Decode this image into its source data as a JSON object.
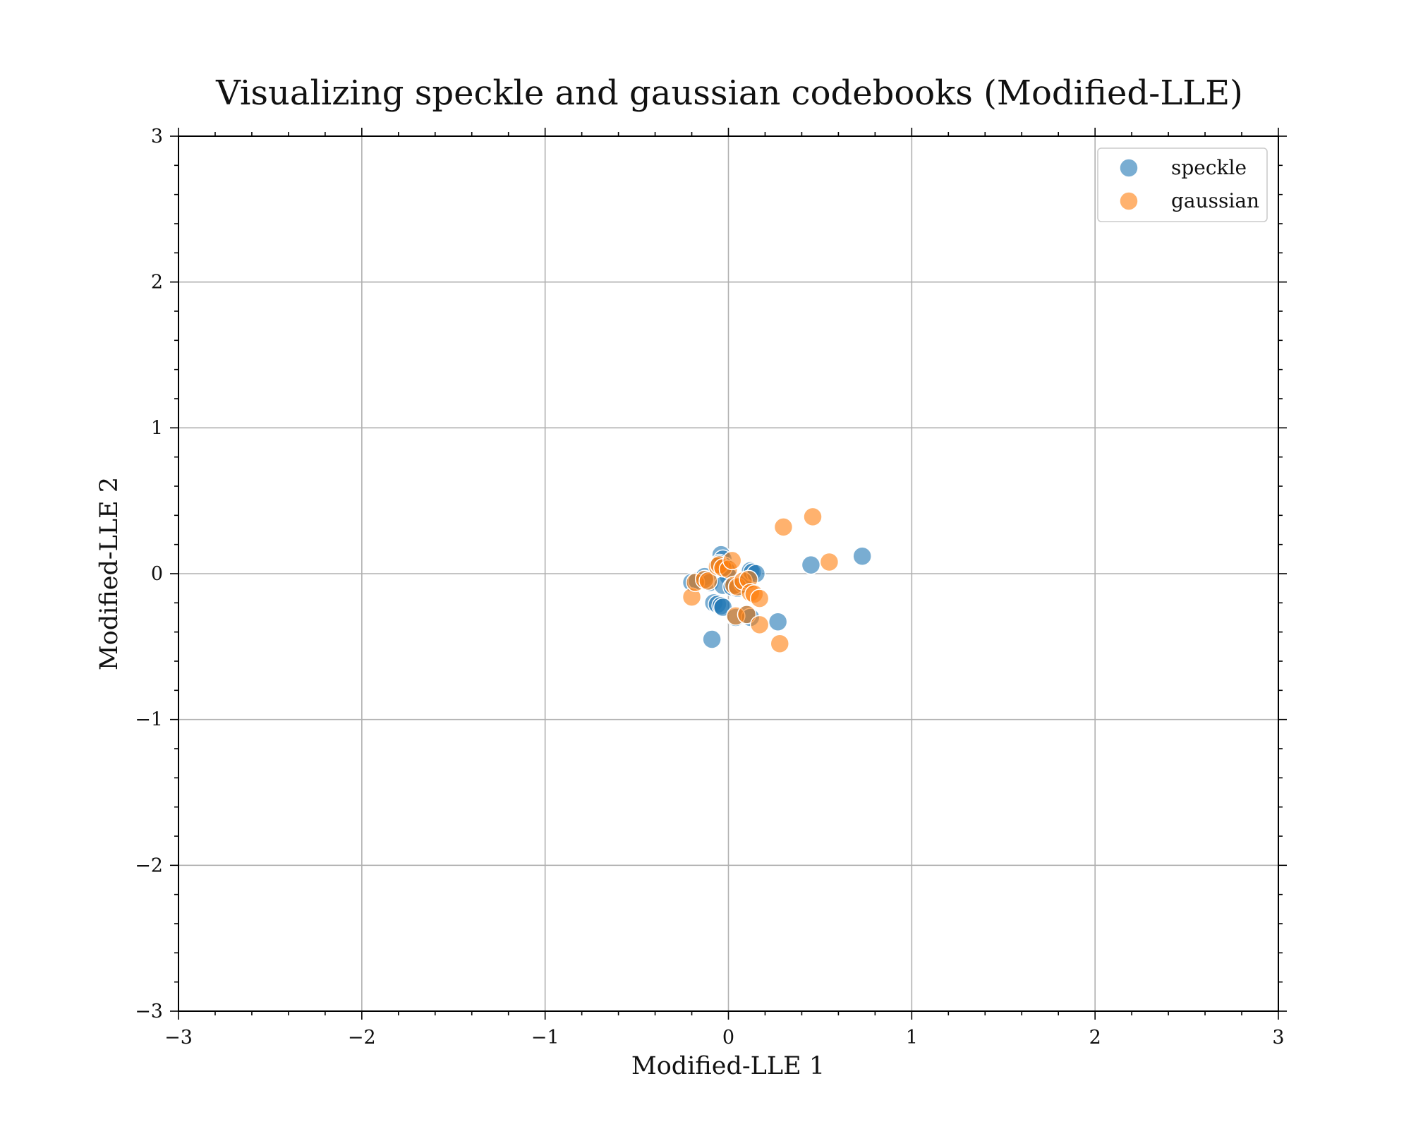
{
  "chart_data": {
    "type": "scatter",
    "title": "Visualizing speckle and gaussian codebooks (Modified-LLE)",
    "xlabel": "Modified-LLE 1",
    "ylabel": "Modified-LLE 2",
    "xlim": [
      -3,
      3
    ],
    "ylim": [
      -3,
      3
    ],
    "xticks": [
      -3,
      -2,
      -1,
      0,
      1,
      2,
      3
    ],
    "yticks": [
      -3,
      -2,
      -1,
      0,
      1,
      2,
      3
    ],
    "xtick_labels": [
      "−3",
      "−2",
      "−1",
      "0",
      "1",
      "2",
      "3"
    ],
    "ytick_labels": [
      "−3",
      "−2",
      "−1",
      "0",
      "1",
      "2",
      "3"
    ],
    "grid": true,
    "legend_position": "top-right",
    "series": [
      {
        "name": "speckle",
        "color": "#1f77b4",
        "points": [
          [
            -0.2,
            -0.06
          ],
          [
            -0.17,
            -0.05
          ],
          [
            -0.13,
            -0.02
          ],
          [
            -0.1,
            -0.06
          ],
          [
            -0.08,
            -0.2
          ],
          [
            -0.06,
            -0.21
          ],
          [
            -0.04,
            -0.22
          ],
          [
            -0.03,
            -0.23
          ],
          [
            -0.09,
            -0.45
          ],
          [
            -0.04,
            0.13
          ],
          [
            -0.03,
            0.1
          ],
          [
            -0.05,
            0.07
          ],
          [
            -0.02,
            0.05
          ],
          [
            -0.01,
            0.02
          ],
          [
            0.0,
            -0.02
          ],
          [
            -0.03,
            -0.08
          ],
          [
            0.02,
            -0.09
          ],
          [
            0.05,
            -0.1
          ],
          [
            0.08,
            -0.07
          ],
          [
            0.1,
            -0.05
          ],
          [
            0.12,
            0.02
          ],
          [
            0.13,
            0.01
          ],
          [
            0.15,
            0.0
          ],
          [
            0.04,
            -0.3
          ],
          [
            0.1,
            -0.28
          ],
          [
            0.12,
            -0.3
          ],
          [
            0.27,
            -0.33
          ],
          [
            0.45,
            0.06
          ],
          [
            0.73,
            0.12
          ]
        ]
      },
      {
        "name": "gaussian",
        "color": "#ff7f0e",
        "points": [
          [
            -0.2,
            -0.16
          ],
          [
            -0.18,
            -0.06
          ],
          [
            -0.13,
            -0.04
          ],
          [
            -0.11,
            -0.05
          ],
          [
            -0.06,
            0.05
          ],
          [
            -0.05,
            0.06
          ],
          [
            -0.03,
            0.04
          ],
          [
            0.0,
            0.03
          ],
          [
            0.02,
            0.09
          ],
          [
            0.03,
            -0.08
          ],
          [
            0.05,
            -0.09
          ],
          [
            0.08,
            -0.05
          ],
          [
            0.11,
            -0.04
          ],
          [
            0.12,
            -0.13
          ],
          [
            0.14,
            -0.14
          ],
          [
            0.17,
            -0.17
          ],
          [
            0.04,
            -0.29
          ],
          [
            0.1,
            -0.28
          ],
          [
            0.17,
            -0.35
          ],
          [
            0.28,
            -0.48
          ],
          [
            0.3,
            0.32
          ],
          [
            0.46,
            0.39
          ],
          [
            0.55,
            0.08
          ]
        ]
      }
    ]
  }
}
